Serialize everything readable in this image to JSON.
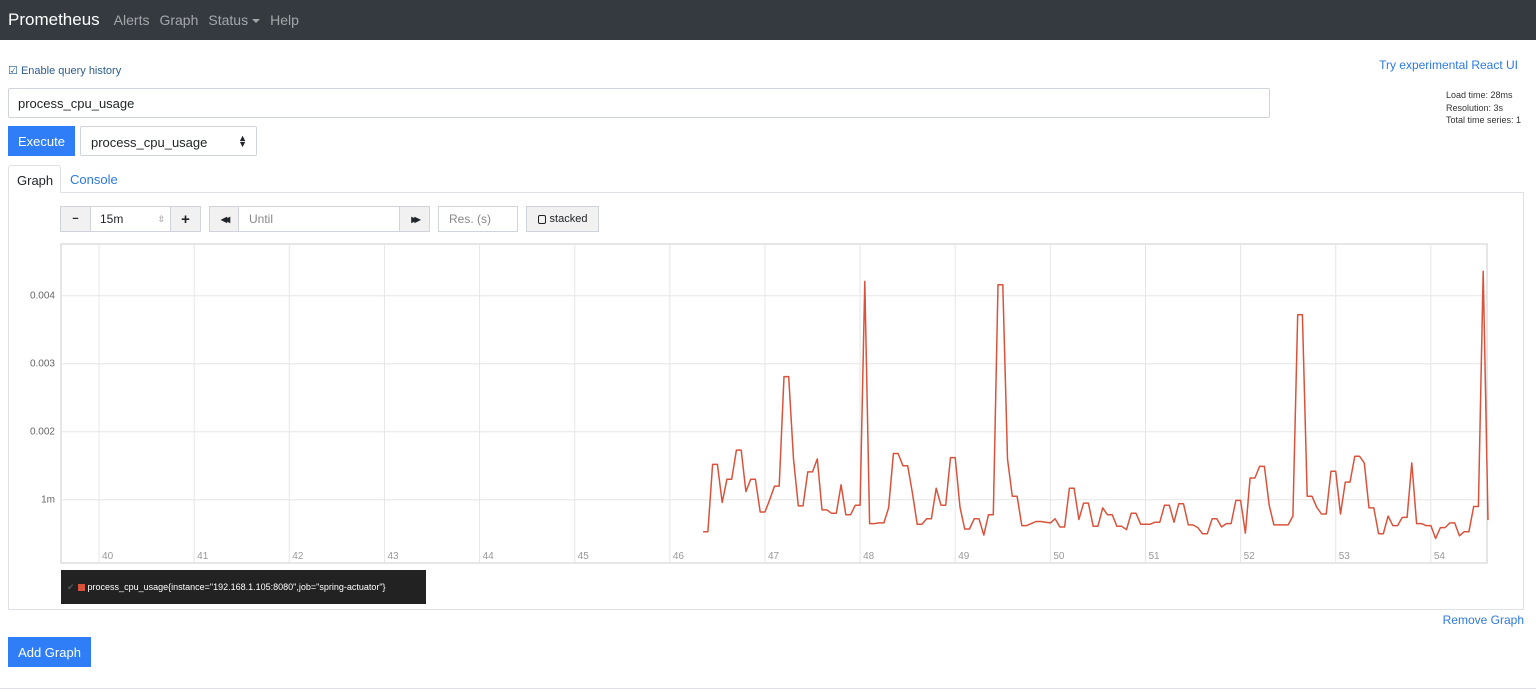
{
  "nav": {
    "brand": "Prometheus",
    "items": [
      "Alerts",
      "Graph",
      "Status",
      "Help"
    ]
  },
  "query_history_label": "Enable query history",
  "react_link": "Try experimental React UI",
  "stats": {
    "load_time": "Load time: 28ms",
    "resolution": "Resolution: 3s",
    "total_series": "Total time series: 1"
  },
  "expression": "process_cpu_usage",
  "execute_label": "Execute",
  "metric_select": "process_cpu_usage",
  "tabs": [
    "Graph",
    "Console"
  ],
  "controls": {
    "minus": "−",
    "range": "15m",
    "plus": "+",
    "back": "◀◀",
    "until_placeholder": "Until",
    "forward": "▶▶",
    "res_placeholder": "Res. (s)",
    "stacked": "stacked"
  },
  "legend": "process_cpu_usage{instance=\"192.168.1.105:8080\",job=\"spring-actuator\"}",
  "remove_graph": "Remove Graph",
  "add_graph": "Add Graph",
  "colors": {
    "series": "#d9533c",
    "accent": "#2f7ef7",
    "navbar": "#343a40"
  },
  "chart_data": {
    "type": "line",
    "title": "",
    "xlabel": "",
    "ylabel": "",
    "xlim": [
      39.6,
      54.59
    ],
    "ylim": [
      7e-05,
      0.00476
    ],
    "grid": true,
    "x_ticks": [
      40,
      41,
      42,
      43,
      44,
      45,
      46,
      47,
      48,
      49,
      50,
      51,
      52,
      53,
      54
    ],
    "x_tick_labels": [
      "40",
      "41",
      "42",
      "43",
      "44",
      "45",
      "46",
      "47",
      "48",
      "49",
      "50",
      "51",
      "52",
      "53",
      "54"
    ],
    "y_ticks": [
      0.001,
      0.002,
      0.003,
      0.004
    ],
    "y_tick_labels": [
      "1m",
      "0.002",
      "0.003",
      "0.004"
    ],
    "series": [
      {
        "name": "process_cpu_usage{instance=\"192.168.1.105:8080\",job=\"spring-actuator\"}",
        "color": "#d9533c",
        "values": [
          0.00053,
          0.00053,
          0.00152,
          0.00152,
          0.00096,
          0.0013,
          0.0013,
          0.00173,
          0.00173,
          0.00112,
          0.0013,
          0.0013,
          0.00082,
          0.00082,
          0.001,
          0.0012,
          0.0012,
          0.00281,
          0.00281,
          0.0016,
          0.00091,
          0.00091,
          0.00141,
          0.00141,
          0.0016,
          0.00085,
          0.00085,
          0.0008,
          0.0008,
          0.00122,
          0.00078,
          0.00078,
          0.00092,
          0.00092,
          0.00421,
          0.00065,
          0.00065,
          0.00066,
          0.00066,
          0.00088,
          0.00168,
          0.00168,
          0.0015,
          0.0015,
          0.0011,
          0.00064,
          0.00064,
          0.00072,
          0.00072,
          0.00117,
          0.00092,
          0.00092,
          0.00162,
          0.00162,
          0.00089,
          0.00057,
          0.00057,
          0.00072,
          0.00072,
          0.00048,
          0.00078,
          0.00078,
          0.00416,
          0.00416,
          0.0016,
          0.00105,
          0.00105,
          0.00062,
          0.00062,
          0.00065,
          0.00068,
          0.00068,
          0.00067,
          0.00066,
          0.00072,
          0.0006,
          0.0006,
          0.00117,
          0.00117,
          0.00071,
          0.00095,
          0.00095,
          0.00061,
          0.00061,
          0.00088,
          0.00078,
          0.00078,
          0.00061,
          0.00061,
          0.00056,
          0.0008,
          0.0008,
          0.00064,
          0.00064,
          0.00064,
          0.00067,
          0.00067,
          0.00092,
          0.00092,
          0.00067,
          0.00094,
          0.00094,
          0.00063,
          0.00063,
          0.00059,
          0.0005,
          0.0005,
          0.00072,
          0.00072,
          0.0006,
          0.00065,
          0.00065,
          0.00099,
          0.00099,
          0.00051,
          0.00132,
          0.00132,
          0.00149,
          0.00149,
          0.00092,
          0.00063,
          0.00063,
          0.00063,
          0.00063,
          0.00076,
          0.00372,
          0.00372,
          0.00105,
          0.00105,
          0.00089,
          0.00079,
          0.00079,
          0.00142,
          0.00142,
          0.00079,
          0.00126,
          0.00126,
          0.00164,
          0.00164,
          0.00154,
          0.00088,
          0.00088,
          0.0005,
          0.0005,
          0.00076,
          0.00062,
          0.00062,
          0.00074,
          0.00074,
          0.00154,
          0.00065,
          0.00065,
          0.00062,
          0.00062,
          0.00043,
          0.00059,
          0.00059,
          0.00066,
          0.00066,
          0.00047,
          0.00053,
          0.00053,
          0.0009,
          0.0009,
          0.00436,
          0.0007
        ],
        "x": [
          46.35,
          46.4,
          46.45,
          46.5,
          46.55,
          46.6,
          46.65,
          46.7,
          46.75,
          46.8,
          46.85,
          46.9,
          46.95,
          47.0,
          47.05,
          47.1,
          47.15,
          47.2,
          47.25,
          47.3,
          47.35,
          47.4,
          47.45,
          47.5,
          47.55,
          47.6,
          47.65,
          47.7,
          47.75,
          47.8,
          47.85,
          47.9,
          47.95,
          48.0,
          48.05,
          48.1,
          48.15,
          48.2,
          48.25,
          48.3,
          48.35,
          48.4,
          48.45,
          48.5,
          48.55,
          48.6,
          48.65,
          48.7,
          48.75,
          48.8,
          48.85,
          48.9,
          48.95,
          49.0,
          49.05,
          49.1,
          49.15,
          49.2,
          49.25,
          49.3,
          49.35,
          49.4,
          49.45,
          49.5,
          49.55,
          49.6,
          49.65,
          49.7,
          49.75,
          49.8,
          49.85,
          49.9,
          49.95,
          50.0,
          50.05,
          50.1,
          50.15,
          50.2,
          50.25,
          50.3,
          50.35,
          50.4,
          50.45,
          50.5,
          50.55,
          50.6,
          50.65,
          50.7,
          50.75,
          50.8,
          50.85,
          50.9,
          50.95,
          51.0,
          51.05,
          51.1,
          51.15,
          51.2,
          51.25,
          51.3,
          51.35,
          51.4,
          51.45,
          51.5,
          51.55,
          51.6,
          51.65,
          51.7,
          51.75,
          51.8,
          51.85,
          51.9,
          51.95,
          52.0,
          52.05,
          52.1,
          52.15,
          52.2,
          52.25,
          52.3,
          52.35,
          52.4,
          52.45,
          52.5,
          52.55,
          52.6,
          52.65,
          52.7,
          52.75,
          52.8,
          52.85,
          52.9,
          52.95,
          53.0,
          53.05,
          53.1,
          53.15,
          53.2,
          53.25,
          53.3,
          53.35,
          53.4,
          53.45,
          53.5,
          53.55,
          53.6,
          53.65,
          53.7,
          53.75,
          53.8,
          53.85,
          53.9,
          53.95,
          54.0,
          54.05,
          54.1,
          54.15,
          54.2,
          54.25,
          54.3,
          54.35,
          54.4,
          54.45,
          54.5,
          54.55,
          54.6
        ]
      }
    ]
  }
}
